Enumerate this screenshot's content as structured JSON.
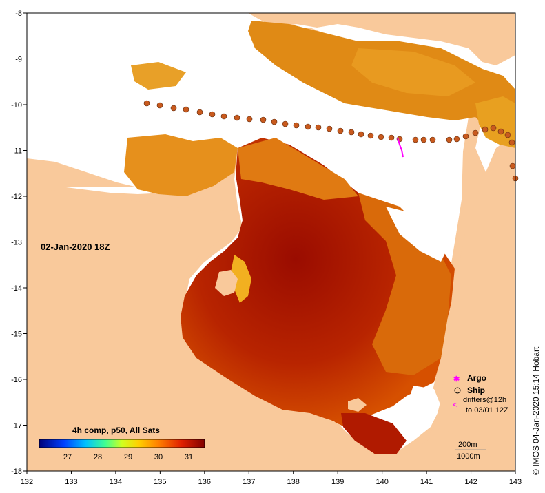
{
  "map": {
    "timestamp_label": "02-Jan-2020 18Z",
    "composite_label": "4h comp, p50, All Sats",
    "credit": "© IMOS 04-Jan-2020 15:14 Hobart",
    "x_ticks": [
      "132",
      "133",
      "134",
      "135",
      "136",
      "137",
      "138",
      "139",
      "140",
      "141",
      "142",
      "143"
    ],
    "y_ticks": [
      "-8",
      "-9",
      "-10",
      "-11",
      "-12",
      "-13",
      "-14",
      "-15",
      "-16",
      "-17",
      "-18"
    ],
    "colorbar_ticks": [
      "27",
      "28",
      "29",
      "30",
      "31"
    ],
    "legend": {
      "argo": "Argo",
      "ship": "Ship",
      "drifters_line1": "drifters@12h",
      "drifters_line2": "to 03/01 12Z"
    },
    "contours": {
      "depth_200": "200m",
      "depth_1000": "1000m"
    },
    "colors": {
      "land": "#f9c99b",
      "nodata": "#ffffff",
      "sst_warm": "#a01000",
      "sst_mid": "#d86000",
      "sst_cool": "#f0a020",
      "argo": "#ff00ff",
      "ship": "#c85a1e"
    }
  }
}
